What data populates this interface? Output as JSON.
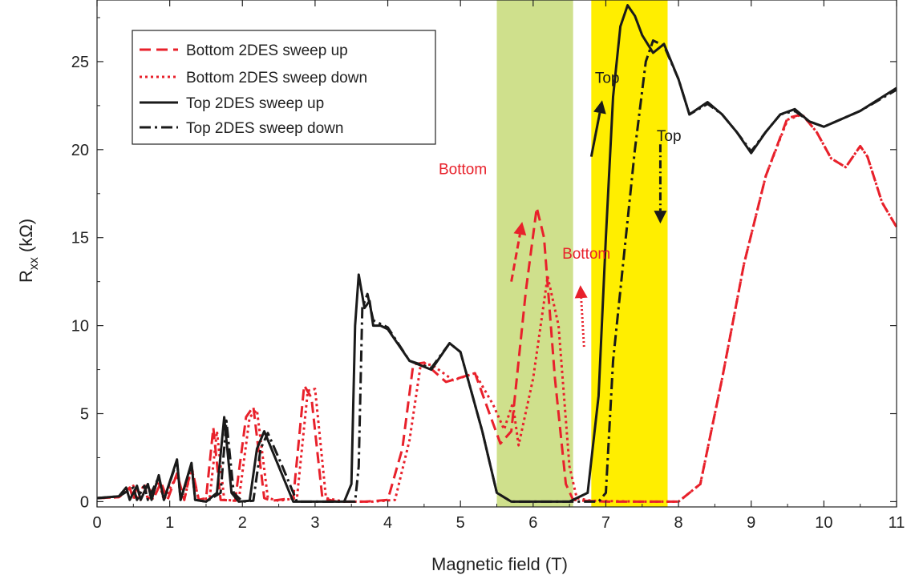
{
  "chart_data": {
    "type": "line",
    "title": "",
    "xlabel": "Magnetic field (T)",
    "ylabel_main": "R",
    "ylabel_sub": "xx",
    "ylabel_unit": " (kΩ)",
    "xlim": [
      0,
      11
    ],
    "ylim": [
      -0.3,
      28.5
    ],
    "xticks": [
      "0",
      "1",
      "2",
      "3",
      "4",
      "5",
      "6",
      "7",
      "8",
      "9",
      "10",
      "11"
    ],
    "yticks": [
      "0",
      "5",
      "10",
      "15",
      "20",
      "25"
    ],
    "grid": false,
    "legend_position": "top-left",
    "bands": [
      {
        "x0": 5.5,
        "x1": 6.55,
        "color": "#cfe08c"
      },
      {
        "x0": 6.8,
        "x1": 7.85,
        "color": "#ffee00"
      }
    ],
    "series": [
      {
        "name": "Bottom 2DES sweep up",
        "color": "#e8212b",
        "dash": "14,7",
        "points": [
          [
            0,
            0.2
          ],
          [
            0.3,
            0.25
          ],
          [
            0.45,
            0.8
          ],
          [
            0.5,
            0.1
          ],
          [
            0.55,
            0.9
          ],
          [
            0.6,
            0.1
          ],
          [
            0.7,
            1.0
          ],
          [
            0.77,
            0.1
          ],
          [
            0.88,
            1.1
          ],
          [
            0.97,
            0.1
          ],
          [
            1.1,
            1.6
          ],
          [
            1.2,
            0.1
          ],
          [
            1.3,
            2.0
          ],
          [
            1.4,
            0.1
          ],
          [
            1.5,
            0.2
          ],
          [
            1.6,
            4.2
          ],
          [
            1.7,
            0.1
          ],
          [
            1.9,
            0.05
          ],
          [
            2.05,
            4.8
          ],
          [
            2.15,
            5.4
          ],
          [
            2.3,
            0.2
          ],
          [
            2.4,
            0.05
          ],
          [
            2.7,
            0.2
          ],
          [
            2.85,
            6.6
          ],
          [
            2.95,
            5.9
          ],
          [
            3.1,
            0.2
          ],
          [
            3.3,
            0.0
          ],
          [
            3.7,
            0.0
          ],
          [
            4.0,
            0.1
          ],
          [
            4.2,
            3.0
          ],
          [
            4.35,
            7.8
          ],
          [
            4.5,
            7.9
          ],
          [
            4.8,
            6.8
          ],
          [
            5.2,
            7.3
          ],
          [
            5.4,
            5.0
          ],
          [
            5.55,
            3.3
          ],
          [
            5.7,
            4.0
          ],
          [
            5.9,
            12.0
          ],
          [
            6.05,
            16.7
          ],
          [
            6.15,
            15.0
          ],
          [
            6.3,
            7.0
          ],
          [
            6.45,
            1.0
          ],
          [
            6.55,
            0.1
          ],
          [
            6.7,
            0.05
          ],
          [
            7.0,
            0.0
          ],
          [
            8.0,
            0.0
          ],
          [
            8.3,
            1.0
          ],
          [
            8.6,
            7.0
          ],
          [
            8.9,
            13.5
          ],
          [
            9.2,
            18.5
          ],
          [
            9.5,
            21.8
          ],
          [
            9.7,
            22.0
          ],
          [
            9.9,
            21.0
          ],
          [
            10.1,
            19.5
          ],
          [
            10.3,
            19.0
          ],
          [
            10.5,
            20.2
          ],
          [
            10.6,
            19.6
          ],
          [
            10.8,
            17.0
          ],
          [
            11.0,
            15.6
          ]
        ]
      },
      {
        "name": "Bottom 2DES sweep down",
        "color": "#e8212b",
        "dash": "3,4",
        "points": [
          [
            0,
            0.2
          ],
          [
            0.3,
            0.25
          ],
          [
            0.5,
            0.9
          ],
          [
            0.55,
            0.1
          ],
          [
            0.65,
            1.0
          ],
          [
            0.7,
            0.1
          ],
          [
            0.85,
            1.1
          ],
          [
            0.92,
            0.1
          ],
          [
            1.1,
            1.5
          ],
          [
            1.2,
            0.1
          ],
          [
            1.3,
            1.9
          ],
          [
            1.4,
            0.1
          ],
          [
            1.55,
            0.2
          ],
          [
            1.65,
            4.0
          ],
          [
            1.75,
            0.1
          ],
          [
            1.95,
            0.05
          ],
          [
            2.1,
            4.8
          ],
          [
            2.2,
            5.2
          ],
          [
            2.35,
            0.2
          ],
          [
            2.5,
            0.05
          ],
          [
            2.75,
            0.2
          ],
          [
            2.9,
            6.3
          ],
          [
            3.0,
            6.4
          ],
          [
            3.15,
            0.2
          ],
          [
            3.4,
            0.0
          ],
          [
            3.8,
            0.0
          ],
          [
            4.1,
            0.1
          ],
          [
            4.3,
            3.5
          ],
          [
            4.45,
            7.7
          ],
          [
            4.6,
            7.8
          ],
          [
            4.9,
            6.9
          ],
          [
            5.2,
            7.3
          ],
          [
            5.45,
            5.5
          ],
          [
            5.6,
            4.1
          ],
          [
            5.72,
            5.6
          ],
          [
            5.8,
            3.2
          ],
          [
            6.0,
            7.0
          ],
          [
            6.2,
            12.8
          ],
          [
            6.35,
            10.0
          ],
          [
            6.5,
            2.0
          ],
          [
            6.6,
            0.2
          ],
          [
            6.8,
            0.05
          ],
          [
            7.5,
            0.0
          ],
          [
            8.0,
            0.0
          ],
          [
            8.3,
            1.0
          ],
          [
            8.6,
            7.0
          ],
          [
            8.9,
            13.5
          ],
          [
            9.2,
            18.5
          ],
          [
            9.5,
            21.7
          ],
          [
            9.7,
            22.0
          ],
          [
            9.9,
            21.0
          ],
          [
            10.1,
            19.5
          ],
          [
            10.3,
            19.0
          ],
          [
            10.5,
            20.2
          ],
          [
            10.6,
            19.6
          ],
          [
            10.8,
            17.0
          ],
          [
            11.0,
            15.6
          ]
        ]
      },
      {
        "name": "Top 2DES sweep up",
        "color": "#1a1a1a",
        "dash": "",
        "points": [
          [
            0,
            0.2
          ],
          [
            0.3,
            0.3
          ],
          [
            0.4,
            0.8
          ],
          [
            0.45,
            0.1
          ],
          [
            0.55,
            0.9
          ],
          [
            0.6,
            0.1
          ],
          [
            0.7,
            1.0
          ],
          [
            0.75,
            0.1
          ],
          [
            0.85,
            1.5
          ],
          [
            0.92,
            0.1
          ],
          [
            1.1,
            2.4
          ],
          [
            1.15,
            0.1
          ],
          [
            1.3,
            2.2
          ],
          [
            1.35,
            0.1
          ],
          [
            1.5,
            0.0
          ],
          [
            1.65,
            0.5
          ],
          [
            1.75,
            4.8
          ],
          [
            1.85,
            0.5
          ],
          [
            1.95,
            0.0
          ],
          [
            2.1,
            0.05
          ],
          [
            2.2,
            3.0
          ],
          [
            2.3,
            4.0
          ],
          [
            2.5,
            2.0
          ],
          [
            2.7,
            0.0
          ],
          [
            3.0,
            0.0
          ],
          [
            3.4,
            0.0
          ],
          [
            3.5,
            1.0
          ],
          [
            3.55,
            10.0
          ],
          [
            3.6,
            12.9
          ],
          [
            3.68,
            11.0
          ],
          [
            3.75,
            11.4
          ],
          [
            3.8,
            10.0
          ],
          [
            3.9,
            10.0
          ],
          [
            4.0,
            9.8
          ],
          [
            4.3,
            8.0
          ],
          [
            4.6,
            7.5
          ],
          [
            4.85,
            9.0
          ],
          [
            5.0,
            8.5
          ],
          [
            5.3,
            4.0
          ],
          [
            5.5,
            0.5
          ],
          [
            5.7,
            0.0
          ],
          [
            6.5,
            0.0
          ],
          [
            6.75,
            0.5
          ],
          [
            6.9,
            6.0
          ],
          [
            7.0,
            15.0
          ],
          [
            7.1,
            23.0
          ],
          [
            7.2,
            27.0
          ],
          [
            7.3,
            28.2
          ],
          [
            7.4,
            27.6
          ],
          [
            7.5,
            26.5
          ],
          [
            7.65,
            25.5
          ],
          [
            7.8,
            26.0
          ],
          [
            8.0,
            24.0
          ],
          [
            8.15,
            22.0
          ],
          [
            8.4,
            22.7
          ],
          [
            8.6,
            22.0
          ],
          [
            8.8,
            21.0
          ],
          [
            9.0,
            19.8
          ],
          [
            9.2,
            21.0
          ],
          [
            9.4,
            22.0
          ],
          [
            9.6,
            22.3
          ],
          [
            9.8,
            21.6
          ],
          [
            10.0,
            21.3
          ],
          [
            10.5,
            22.2
          ],
          [
            11.0,
            23.5
          ]
        ]
      },
      {
        "name": "Top 2DES sweep down",
        "color": "#1a1a1a",
        "dash": "14,5,3,5",
        "points": [
          [
            0,
            0.2
          ],
          [
            0.3,
            0.3
          ],
          [
            0.5,
            0.8
          ],
          [
            0.55,
            0.1
          ],
          [
            0.65,
            0.9
          ],
          [
            0.7,
            0.1
          ],
          [
            0.85,
            1.4
          ],
          [
            0.92,
            0.1
          ],
          [
            1.1,
            2.3
          ],
          [
            1.15,
            0.1
          ],
          [
            1.3,
            2.1
          ],
          [
            1.35,
            0.1
          ],
          [
            1.5,
            0.0
          ],
          [
            1.7,
            0.5
          ],
          [
            1.78,
            4.6
          ],
          [
            1.88,
            0.5
          ],
          [
            2.0,
            0.0
          ],
          [
            2.15,
            0.05
          ],
          [
            2.25,
            3.0
          ],
          [
            2.35,
            3.9
          ],
          [
            2.55,
            2.0
          ],
          [
            2.75,
            0.0
          ],
          [
            3.0,
            0.0
          ],
          [
            3.55,
            0.0
          ],
          [
            3.6,
            2.0
          ],
          [
            3.65,
            11.0
          ],
          [
            3.72,
            11.8
          ],
          [
            3.8,
            10.3
          ],
          [
            4.0,
            9.9
          ],
          [
            4.3,
            8.0
          ],
          [
            4.6,
            7.6
          ],
          [
            4.85,
            9.0
          ],
          [
            5.0,
            8.5
          ],
          [
            5.3,
            4.0
          ],
          [
            5.5,
            0.5
          ],
          [
            5.7,
            0.0
          ],
          [
            6.9,
            0.0
          ],
          [
            7.0,
            0.5
          ],
          [
            7.1,
            8.0
          ],
          [
            7.25,
            14.0
          ],
          [
            7.4,
            20.0
          ],
          [
            7.55,
            25.0
          ],
          [
            7.65,
            26.2
          ],
          [
            7.8,
            25.9
          ],
          [
            8.0,
            24.0
          ],
          [
            8.15,
            22.0
          ],
          [
            8.4,
            22.6
          ],
          [
            8.6,
            22.0
          ],
          [
            8.8,
            21.0
          ],
          [
            9.0,
            19.9
          ],
          [
            9.2,
            21.0
          ],
          [
            9.4,
            22.0
          ],
          [
            9.6,
            22.2
          ],
          [
            9.8,
            21.6
          ],
          [
            10.0,
            21.3
          ],
          [
            10.5,
            22.2
          ],
          [
            11.0,
            23.4
          ]
        ]
      }
    ],
    "annotations": [
      {
        "text": "Top",
        "color": "#1a1a1a",
        "x": 6.85,
        "y": 23.8
      },
      {
        "text": "Top",
        "color": "#1a1a1a",
        "x": 7.7,
        "y": 20.5
      },
      {
        "text": "Bottom",
        "color": "#e8212b",
        "x": 4.7,
        "y": 18.6
      },
      {
        "text": "Bottom",
        "color": "#e8212b",
        "x": 6.4,
        "y": 13.8
      }
    ],
    "arrows": [
      {
        "color": "#1a1a1a",
        "style": "solid",
        "from": [
          6.8,
          19.6
        ],
        "to": [
          6.95,
          22.8
        ]
      },
      {
        "color": "#1a1a1a",
        "style": "dashdot",
        "from": [
          7.75,
          20.3
        ],
        "to": [
          7.75,
          15.8
        ]
      },
      {
        "color": "#e8212b",
        "style": "dashed",
        "from": [
          5.7,
          12.5
        ],
        "to": [
          5.85,
          15.9
        ]
      },
      {
        "color": "#e8212b",
        "style": "dotted",
        "from": [
          6.7,
          8.8
        ],
        "to": [
          6.65,
          12.3
        ]
      }
    ]
  }
}
